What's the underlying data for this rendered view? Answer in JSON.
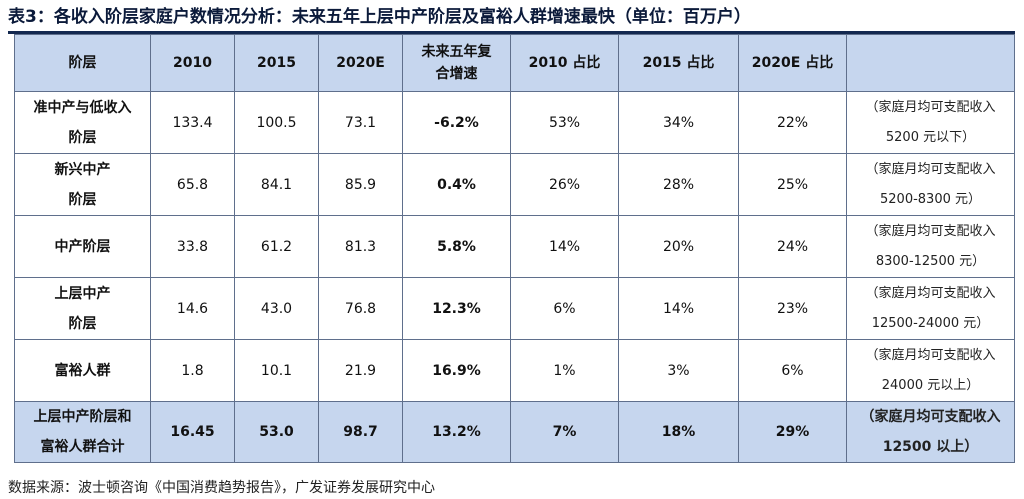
{
  "title": "表3：各收入阶层家庭户数情况分析：未来五年上层中产阶层及富裕人群增速最快（单位：百万户）",
  "headers": [
    "阶层",
    "2010",
    "2015",
    "2020E",
    [
      "未来五年复",
      "合增速"
    ],
    "2010 占比",
    "2015 占比",
    "2020E 占比",
    ""
  ],
  "rows": [
    {
      "label": [
        "准中产与低收入",
        "阶层"
      ],
      "c2010": "133.4",
      "c2015": "100.5",
      "c2020": "73.1",
      "cagr": "-6.2%",
      "s2010": "53%",
      "s2015": "34%",
      "s2020": "22%",
      "note": [
        "（家庭月均可支配收入",
        "5200 元以下）"
      ]
    },
    {
      "label": [
        "新兴中产",
        "阶层"
      ],
      "c2010": "65.8",
      "c2015": "84.1",
      "c2020": "85.9",
      "cagr": "0.4%",
      "s2010": "26%",
      "s2015": "28%",
      "s2020": "25%",
      "note": [
        "（家庭月均可支配收入",
        "5200-8300 元）"
      ]
    },
    {
      "label": [
        "中产阶层"
      ],
      "c2010": "33.8",
      "c2015": "61.2",
      "c2020": "81.3",
      "cagr": "5.8%",
      "s2010": "14%",
      "s2015": "20%",
      "s2020": "24%",
      "note": [
        "（家庭月均可支配收入",
        "8300-12500 元）"
      ]
    },
    {
      "label": [
        "上层中产",
        "阶层"
      ],
      "c2010": "14.6",
      "c2015": "43.0",
      "c2020": "76.8",
      "cagr": "12.3%",
      "s2010": "6%",
      "s2015": "14%",
      "s2020": "23%",
      "note": [
        "（家庭月均可支配收入",
        "12500-24000 元）"
      ]
    },
    {
      "label": [
        "富裕人群"
      ],
      "c2010": "1.8",
      "c2015": "10.1",
      "c2020": "21.9",
      "cagr": "16.9%",
      "s2010": "1%",
      "s2015": "3%",
      "s2020": "6%",
      "note": [
        "（家庭月均可支配收入",
        "24000 元以上）"
      ]
    }
  ],
  "total": {
    "label": [
      "上层中产阶层和",
      "富裕人群合计"
    ],
    "c2010": "16.45",
    "c2015": "53.0",
    "c2020": "98.7",
    "cagr": "13.2%",
    "s2010": "7%",
    "s2015": "18%",
    "s2020": "29%",
    "note": [
      "（家庭月均可支配收入",
      "12500 以上）"
    ]
  },
  "source": "数据来源：波士顿咨询《中国消费趋势报告》，广发证券发展研究中心",
  "colors": {
    "header_bg": "#c6d6ee",
    "border": "#5f6f8c",
    "title": "#0b1a3a",
    "rule": "#13284f"
  }
}
